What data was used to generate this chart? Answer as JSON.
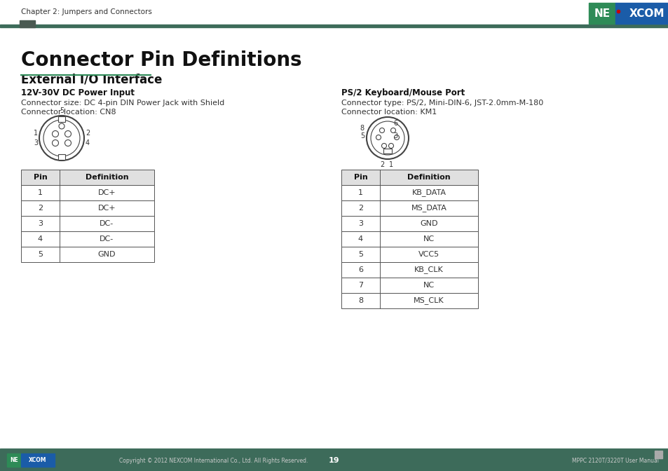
{
  "title": "Connector Pin Definitions",
  "subtitle": "External I/O Interface",
  "bg_color": "#ffffff",
  "header_text": "Chapter 2: Jumpers and Connectors",
  "footer_bar_color": "#3d6b5a",
  "footer_text_left": "Copyright © 2012 NEXCOM International Co., Ltd. All Rights Reserved.",
  "footer_text_center": "19",
  "footer_text_right": "MPPC 2120T/3220T User Manual",
  "left_section_title": "12V-30V DC Power Input",
  "left_desc1": "Connector size: DC 4-pin DIN Power Jack with Shield",
  "left_desc2": "Connector location: CN8",
  "left_table_headers": [
    "Pin",
    "Definition"
  ],
  "left_table_data": [
    [
      "1",
      "DC+"
    ],
    [
      "2",
      "DC+"
    ],
    [
      "3",
      "DC-"
    ],
    [
      "4",
      "DC-"
    ],
    [
      "5",
      "GND"
    ]
  ],
  "right_section_title": "PS/2 Keyboard/Mouse Port",
  "right_desc1": "Connector type: PS/2, Mini-DIN-6, JST-2.0mm-M-180",
  "right_desc2": "Connector location: KM1",
  "right_table_headers": [
    "Pin",
    "Definition"
  ],
  "right_table_data": [
    [
      "1",
      "KB_DATA"
    ],
    [
      "2",
      "MS_DATA"
    ],
    [
      "3",
      "GND"
    ],
    [
      "4",
      "NC"
    ],
    [
      "5",
      "VCC5"
    ],
    [
      "6",
      "KB_CLK"
    ],
    [
      "7",
      "NC"
    ],
    [
      "8",
      "MS_CLK"
    ]
  ],
  "nexcom_green": "#2e8b57",
  "nexcom_blue": "#1a5ca8",
  "nexcom_red": "#cc0000",
  "table_border_color": "#555555",
  "green_bar_color": "#3d6b5a",
  "accent_sq_color": "#4a5a52"
}
